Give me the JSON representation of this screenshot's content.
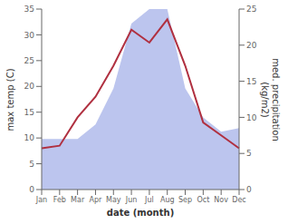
{
  "chart_data": {
    "type": "line",
    "categories": [
      "Jan",
      "Feb",
      "Mar",
      "Apr",
      "May",
      "Jun",
      "Jul",
      "Aug",
      "Sep",
      "Oct",
      "Nov",
      "Dec"
    ],
    "series": [
      {
        "type": "area",
        "axis": "y2",
        "color": "#bcc5ee",
        "values": [
          7,
          7,
          7,
          9,
          14,
          23,
          25,
          25,
          14,
          10,
          8,
          8.5
        ]
      },
      {
        "type": "line",
        "color": "#b03040",
        "values": [
          8,
          8.5,
          14,
          18,
          24,
          31,
          28.5,
          33,
          24,
          13,
          10.5,
          8
        ]
      }
    ],
    "x_label": "date (month)",
    "y_label": "max temp (C)",
    "y2_label": "med. precipitation\n(kg/m2)",
    "ylim": [
      0,
      35
    ],
    "yticks": [
      0,
      5,
      10,
      15,
      20,
      25,
      30,
      35
    ],
    "y2lim": [
      0,
      25
    ],
    "y2ticks": [
      0,
      5,
      10,
      15,
      20,
      25
    ],
    "grid": false
  }
}
